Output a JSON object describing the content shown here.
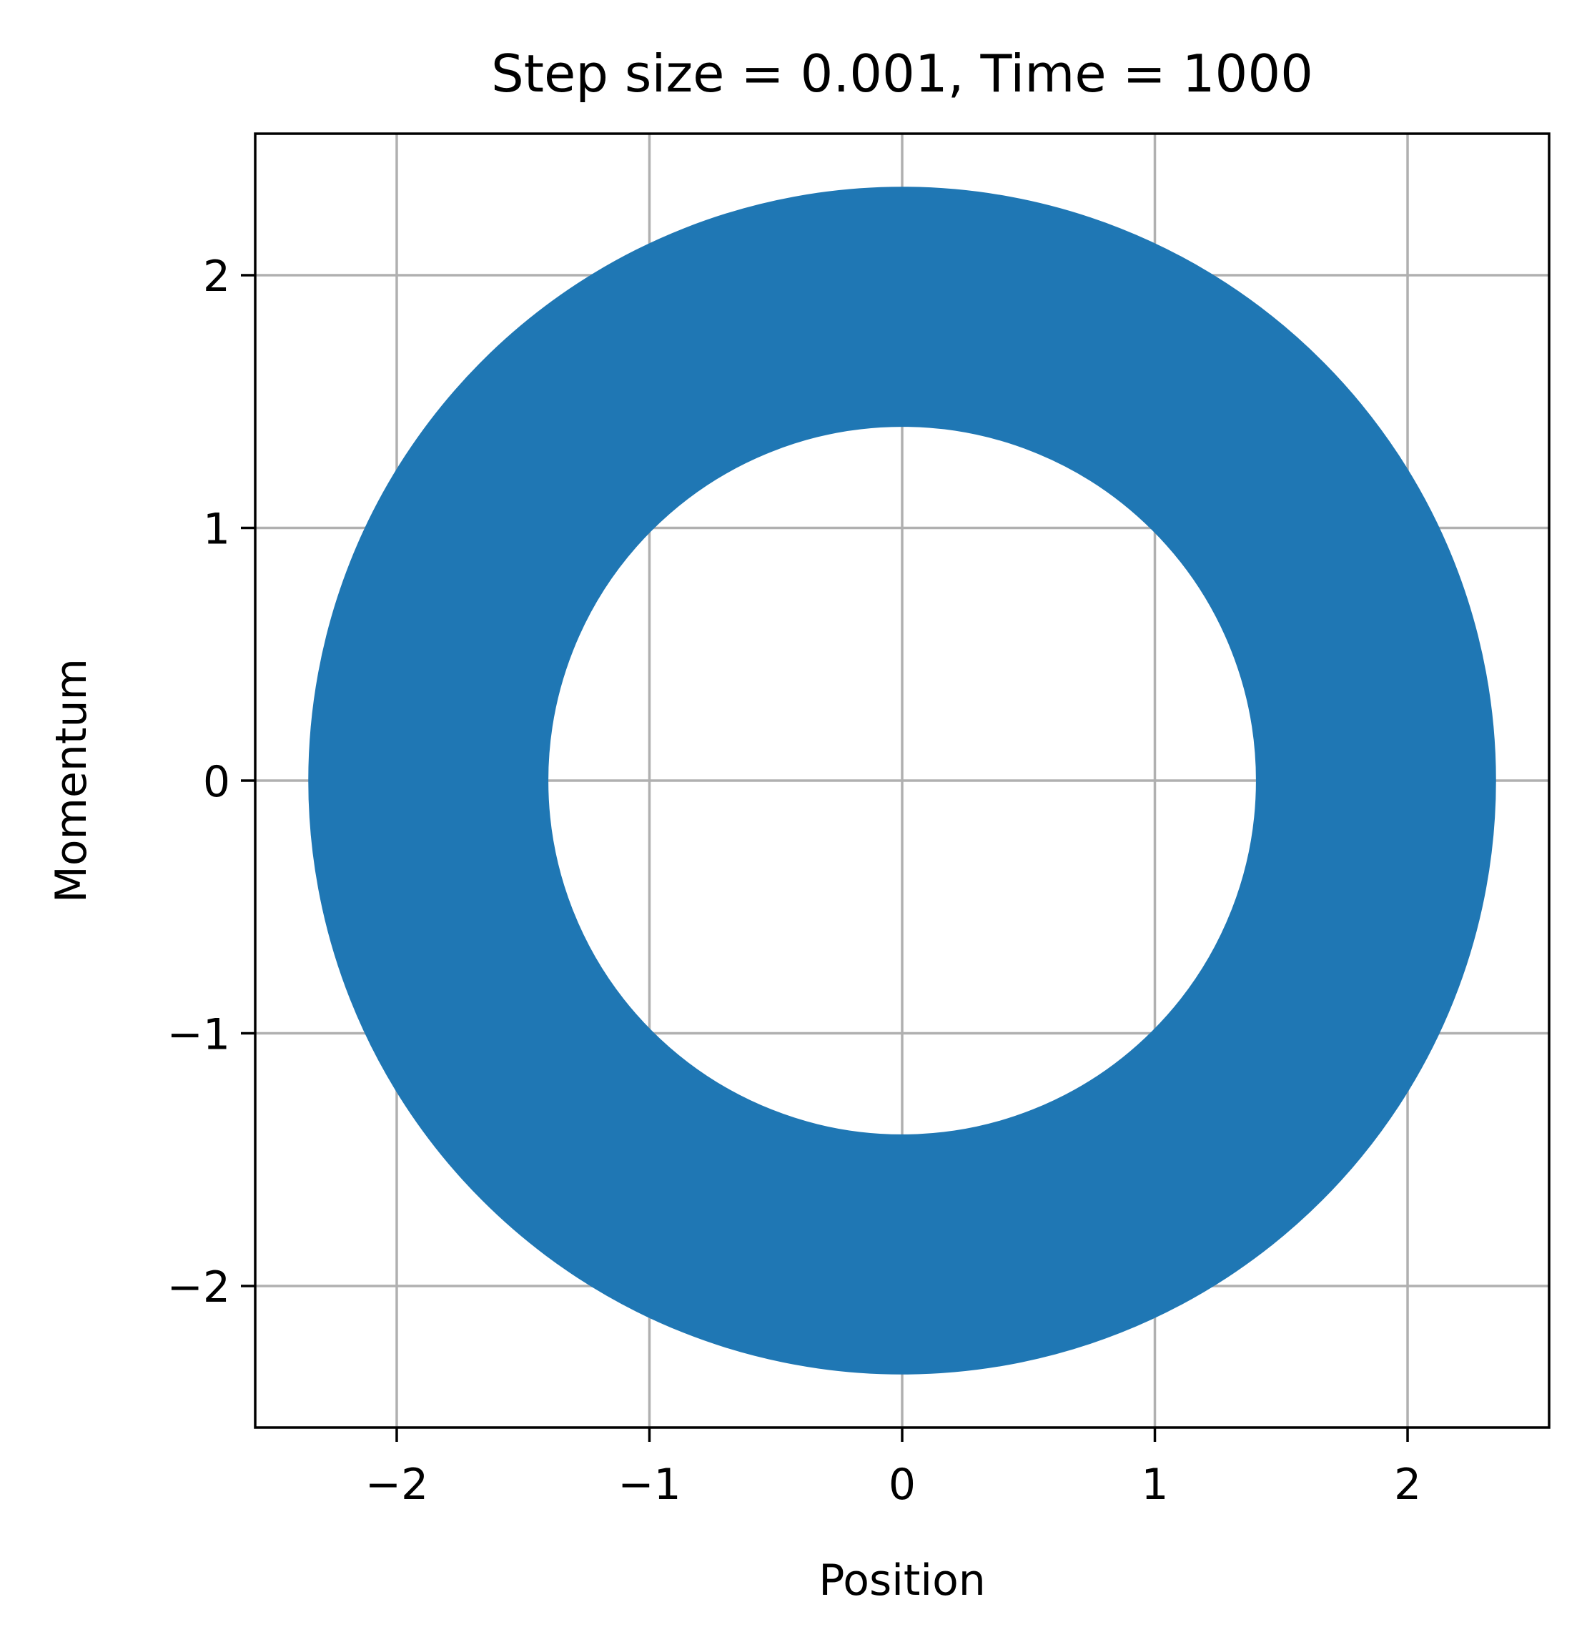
{
  "chart_data": {
    "type": "line",
    "title": "Step size = 0.001, Time = 1000",
    "xlabel": "Position",
    "ylabel": "Momentum",
    "xlim": [
      -2.56,
      2.56
    ],
    "ylim": [
      -2.56,
      2.56
    ],
    "xticks": [
      -2,
      -1,
      0,
      1,
      2
    ],
    "yticks": [
      -2,
      -1,
      0,
      1,
      2
    ],
    "xtick_labels": [
      "−2",
      "−1",
      "0",
      "1",
      "2"
    ],
    "ytick_labels": [
      "−2",
      "−1",
      "0",
      "1",
      "2"
    ],
    "grid": true,
    "aspect": "equal",
    "series": [
      {
        "color": "#1f77b4",
        "shape": "filled annulus traced by the phase-space trajectory",
        "center": [
          0,
          0
        ],
        "inner_radius": 1.4,
        "outer_radius": 2.35
      }
    ]
  }
}
